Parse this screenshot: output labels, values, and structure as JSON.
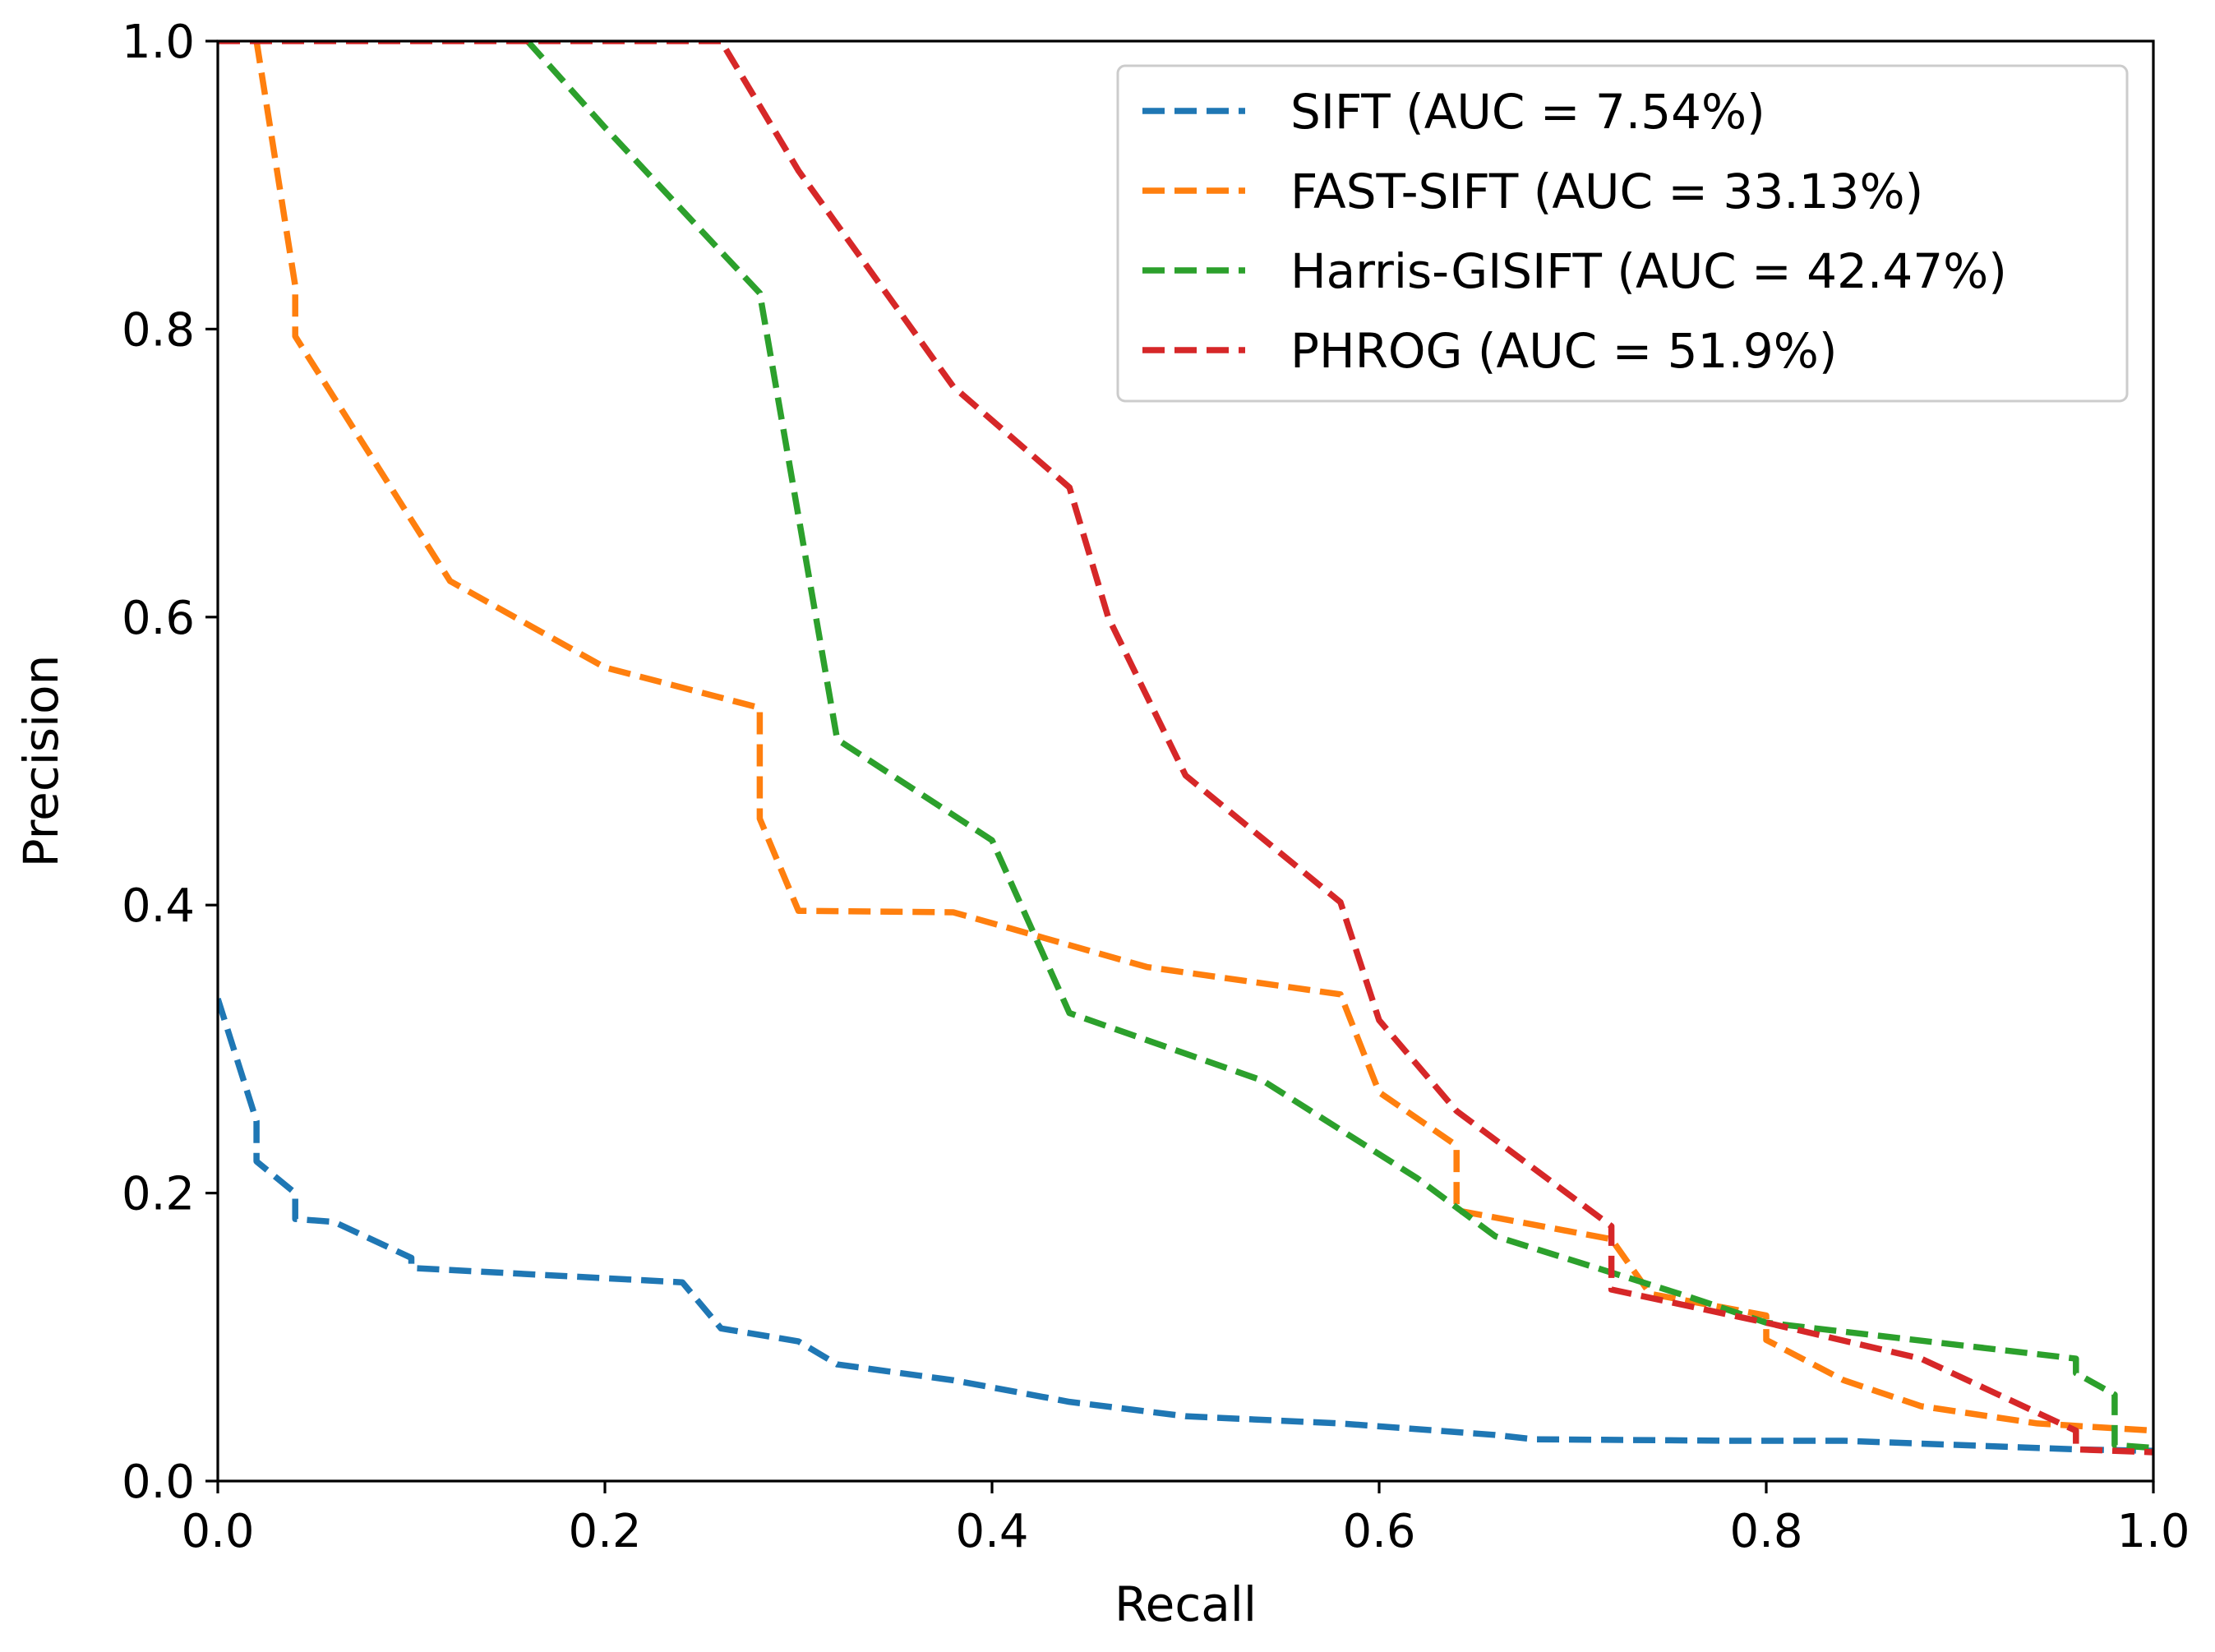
{
  "chart_data": {
    "type": "line",
    "title": "",
    "xlabel": "Recall",
    "ylabel": "Precision",
    "xlim": [
      0.0,
      1.0
    ],
    "ylim": [
      0.0,
      1.0
    ],
    "xticks": [
      "0.0",
      "0.2",
      "0.4",
      "0.6",
      "0.8",
      "1.0"
    ],
    "yticks": [
      "0.0",
      "0.2",
      "0.4",
      "0.6",
      "0.8",
      "1.0"
    ],
    "grid": false,
    "legend_position": "top-right",
    "series": [
      {
        "name": "SIFT (AUC = 7.54%)",
        "color": "#1f77b4",
        "linestyle": "dashed",
        "x": [
          0.0,
          0.02,
          0.02,
          0.04,
          0.04,
          0.06,
          0.1,
          0.1,
          0.24,
          0.26,
          0.3,
          0.32,
          0.38,
          0.44,
          0.5,
          0.58,
          0.66,
          0.68,
          0.78,
          0.84,
          0.96,
          1.0
        ],
        "y": [
          0.335,
          0.25,
          0.222,
          0.2,
          0.182,
          0.18,
          0.155,
          0.148,
          0.138,
          0.106,
          0.097,
          0.081,
          0.07,
          0.055,
          0.045,
          0.04,
          0.032,
          0.029,
          0.028,
          0.028,
          0.022,
          0.021
        ]
      },
      {
        "name": "FAST-SIFT (AUC = 33.13%)",
        "color": "#ff7f0e",
        "linestyle": "dashed",
        "x": [
          0.02,
          0.04,
          0.04,
          0.08,
          0.12,
          0.2,
          0.28,
          0.28,
          0.3,
          0.38,
          0.48,
          0.58,
          0.6,
          0.64,
          0.64,
          0.72,
          0.74,
          0.8,
          0.8,
          0.84,
          0.88,
          0.94,
          1.0
        ],
        "y": [
          1.0,
          0.83,
          0.795,
          0.71,
          0.625,
          0.565,
          0.537,
          0.46,
          0.396,
          0.395,
          0.357,
          0.338,
          0.27,
          0.233,
          0.188,
          0.168,
          0.13,
          0.115,
          0.098,
          0.07,
          0.052,
          0.04,
          0.035
        ]
      },
      {
        "name": "Harris-GISIFT (AUC = 42.47%)",
        "color": "#2ca02c",
        "linestyle": "dashed",
        "x": [
          0.16,
          0.2,
          0.28,
          0.3,
          0.32,
          0.4,
          0.44,
          0.54,
          0.62,
          0.66,
          0.76,
          0.8,
          0.96,
          0.96,
          0.98,
          0.98,
          1.0
        ],
        "y": [
          1.0,
          0.94,
          0.825,
          0.67,
          0.515,
          0.445,
          0.325,
          0.278,
          0.21,
          0.17,
          0.128,
          0.11,
          0.085,
          0.075,
          0.06,
          0.025,
          0.023
        ]
      },
      {
        "name": "PHROG (AUC = 51.9%)",
        "color": "#d62728",
        "linestyle": "dashed",
        "x": [
          0.0,
          0.26,
          0.3,
          0.38,
          0.44,
          0.46,
          0.5,
          0.58,
          0.6,
          0.64,
          0.72,
          0.72,
          0.8,
          0.88,
          0.96,
          0.96,
          1.0
        ],
        "y": [
          1.0,
          1.0,
          0.91,
          0.76,
          0.69,
          0.6,
          0.49,
          0.402,
          0.32,
          0.257,
          0.177,
          0.133,
          0.11,
          0.085,
          0.035,
          0.022,
          0.02
        ]
      }
    ]
  }
}
